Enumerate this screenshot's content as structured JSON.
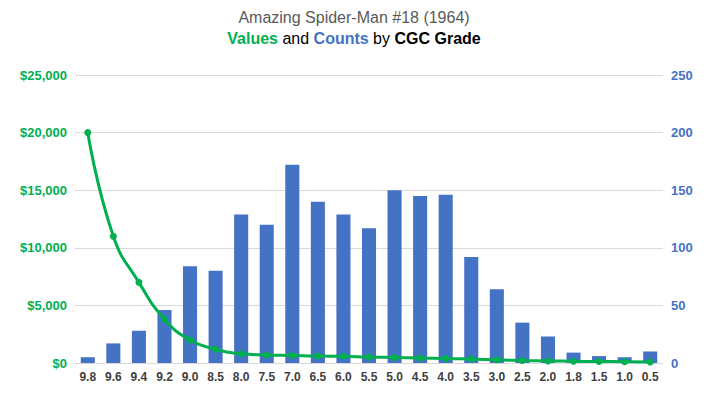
{
  "chart_data": {
    "type": "bar",
    "title": "Amazing Spider-Man #18 (1964)",
    "subtitle": "Values and Counts by CGC Grade",
    "categories": [
      "9.8",
      "9.6",
      "9.4",
      "9.2",
      "9.0",
      "8.5",
      "8.0",
      "7.5",
      "7.0",
      "6.5",
      "6.0",
      "5.5",
      "5.0",
      "4.5",
      "4.0",
      "3.5",
      "3.0",
      "2.5",
      "2.0",
      "1.8",
      "1.5",
      "1.0",
      "0.5"
    ],
    "series": [
      {
        "name": "Values",
        "type": "line",
        "color": "#00b050",
        "marker": "circle",
        "line_style": "smooth",
        "values": [
          20000,
          11000,
          7000,
          3800,
          2000,
          1200,
          800,
          700,
          650,
          600,
          580,
          520,
          480,
          430,
          400,
          340,
          280,
          220,
          180,
          150,
          130,
          110,
          90
        ]
      },
      {
        "name": "Counts",
        "type": "bar",
        "color": "#4472c4",
        "axis": "y2",
        "values": [
          5,
          17,
          28,
          46,
          84,
          80,
          129,
          120,
          172,
          140,
          129,
          117,
          150,
          145,
          146,
          92,
          64,
          35,
          23,
          9,
          6,
          5,
          10
        ]
      }
    ],
    "ylim": [
      0,
      25000
    ],
    "yticks": [
      {
        "value": 0,
        "label": "$0"
      },
      {
        "value": 5000,
        "label": "$5,000"
      },
      {
        "value": 10000,
        "label": "$10,000"
      },
      {
        "value": 15000,
        "label": "$15,000"
      },
      {
        "value": 20000,
        "label": "$20,000"
      },
      {
        "value": 25000,
        "label": "$25,000"
      }
    ],
    "y2lim": [
      0,
      250
    ],
    "y2ticks": [
      0,
      50,
      100,
      150,
      200,
      250
    ],
    "grid": true
  }
}
